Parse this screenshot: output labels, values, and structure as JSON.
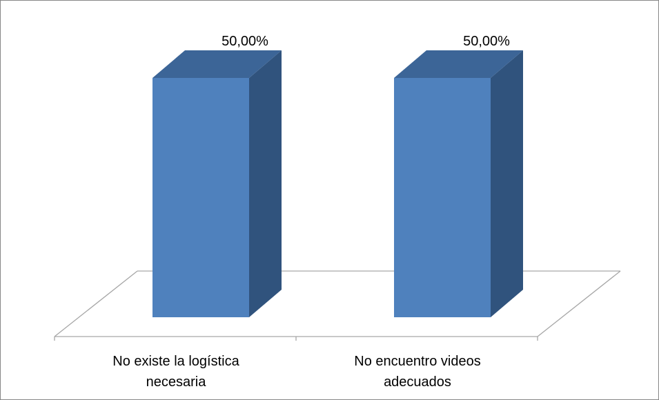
{
  "chart_data": {
    "type": "bar",
    "style": "3d-column",
    "categories": [
      [
        "No existe la logística",
        "necesaria"
      ],
      [
        "No encuentro videos",
        "adecuados"
      ]
    ],
    "values": [
      50.0,
      50.0
    ],
    "data_labels": [
      "50,00%",
      "50,00%"
    ],
    "ylim": [
      0,
      50
    ],
    "grid": false,
    "legend": "none",
    "colors": {
      "front": "#4f81bd",
      "top": "#3c6597",
      "side": "#30537d",
      "floor_line": "#a6a6a6",
      "frame": "#868686"
    }
  }
}
